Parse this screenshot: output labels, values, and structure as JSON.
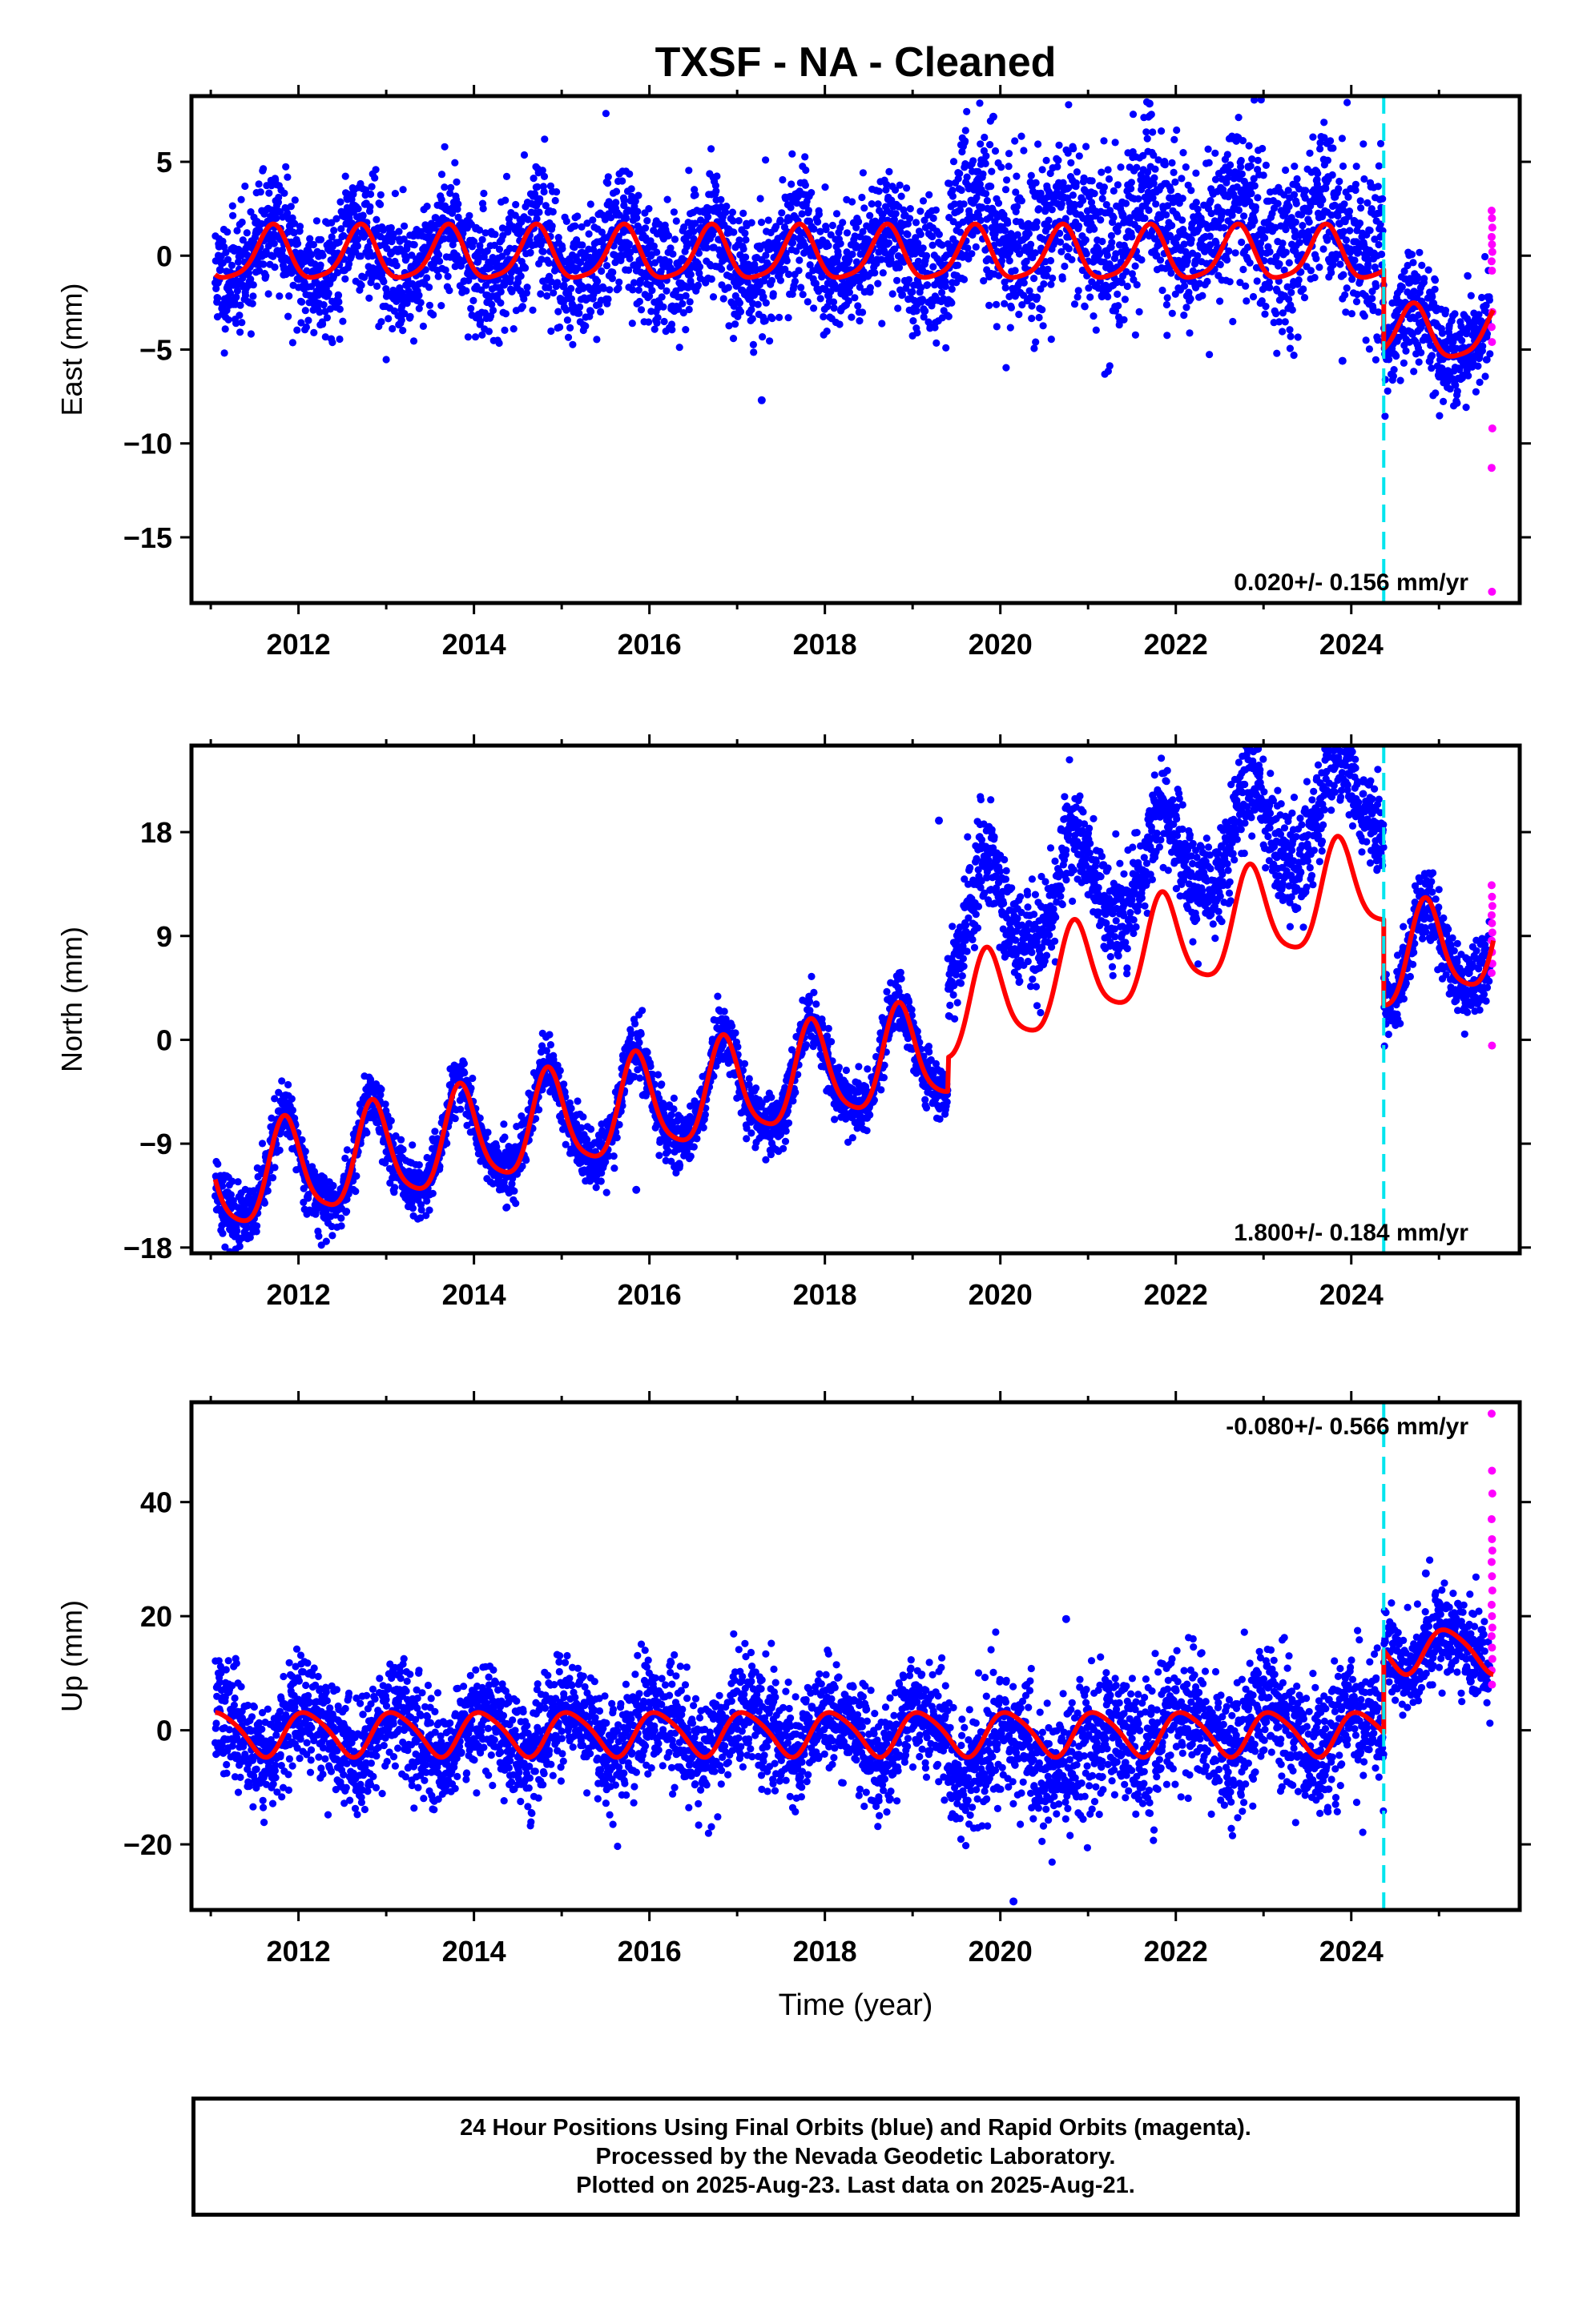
{
  "title": "TXSF  - NA - Cleaned",
  "xlabel": "Time (year)",
  "colors": {
    "final_orbits": "#0000ff",
    "rapid_orbits": "#ff00ff",
    "model_fit": "#ff0000",
    "offset_line": "#00e5ee",
    "frame": "#000000"
  },
  "notes": [
    "24 Hour Positions Using Final Orbits (blue) and Rapid Orbits (magenta).",
    "Processed by the Nevada Geodetic Laboratory.",
    "Plotted on 2025-Aug-23. Last data on 2025-Aug-21."
  ],
  "chart_data": [
    {
      "type": "scatter",
      "component": "east",
      "ylabel": "East (mm)",
      "xlim": [
        2010.78,
        2025.92
      ],
      "ylim": [
        -18.5,
        8.5
      ],
      "xticks": [
        2012,
        2014,
        2016,
        2018,
        2020,
        2022,
        2024
      ],
      "yticks": [
        5,
        0,
        -5,
        -10,
        -15
      ],
      "yticklabels": [
        "5",
        "0",
        "−5",
        "−10",
        "−15"
      ],
      "rate_text": "0.020+/- 0.156 mm/yr",
      "rate_position": "bottom-right",
      "offset_epoch": 2024.37,
      "rapid_orbit_epoch": 2025.6,
      "rapid_orbit_values": [
        2.4,
        2.0,
        1.5,
        1.0,
        0.6,
        0.2,
        -0.3,
        -0.8,
        -3.0,
        -3.8,
        -4.6,
        -9.2,
        -11.3,
        -17.9
      ],
      "final_orbit_outliers": [
        {
          "x": 2017.28,
          "y": -7.7
        },
        {
          "x": 2021.7,
          "y": 8.1
        },
        {
          "x": 2019.92,
          "y": 7.4
        },
        {
          "x": 2023.9,
          "y": -5.6
        }
      ],
      "model": {
        "pre_offset_segments": [
          [
            2011.0,
            2019.4,
            0.0,
            0.0
          ],
          [
            2019.4,
            2024.37,
            0.0,
            0.0
          ]
        ],
        "post_offset_level": -4.2,
        "annual_amplitude": 1.4,
        "annual_phase": 0.45,
        "semiannual_amplitude": 0.3,
        "semiannual_phase": 0.1
      },
      "scatter_spread": 1.6,
      "scatter_spread_changes": [
        [
          2019.4,
          2.2
        ],
        [
          2024.37,
          1.4
        ]
      ],
      "segment_shift": [
        [
          2019.4,
          2024.37,
          1.4
        ]
      ],
      "seed": 11
    },
    {
      "type": "scatter",
      "component": "north",
      "ylabel": "North (mm)",
      "xlim": [
        2010.78,
        2025.92
      ],
      "ylim": [
        -18.5,
        25.5
      ],
      "xticks": [
        2012,
        2014,
        2016,
        2018,
        2020,
        2022,
        2024
      ],
      "yticks": [
        18,
        9,
        0,
        -9,
        -18
      ],
      "yticklabels": [
        "18",
        "9",
        "0",
        "−9",
        "−18"
      ],
      "rate_text": "1.800+/- 0.184 mm/yr",
      "rate_position": "bottom-right",
      "offset_epoch": 2024.37,
      "rapid_orbit_epoch": 2025.6,
      "rapid_orbit_values": [
        13.4,
        12.4,
        11.6,
        10.8,
        10.1,
        9.3,
        8.6,
        7.6,
        6.6,
        5.8,
        -0.5
      ],
      "final_orbit_outliers": [
        {
          "x": 2024.0,
          "y": 23.6
        },
        {
          "x": 2019.3,
          "y": 19.0
        },
        {
          "x": 2015.85,
          "y": -13.0
        }
      ],
      "model": {
        "pre_offset_segments": [
          [
            2011.0,
            2019.4,
            -12.7,
            1.4
          ],
          [
            2019.4,
            2024.37,
            2.0,
            2.4
          ]
        ],
        "post_offset_level": 6.5,
        "post_offset_rate": 1.8,
        "annual_amplitude": 4.2,
        "annual_phase": 0.6,
        "semiannual_amplitude": 0.8,
        "semiannual_phase": 0.2
      },
      "scatter_spread": 1.3,
      "scatter_spread_changes": [
        [
          2019.4,
          2.1
        ],
        [
          2024.37,
          1.5
        ]
      ],
      "segment_shift": [
        [
          2019.4,
          2024.37,
          7.5
        ]
      ],
      "seed": 23
    },
    {
      "type": "scatter",
      "component": "up",
      "ylabel": "Up (mm)",
      "xlim": [
        2010.78,
        2025.92
      ],
      "ylim": [
        -31.5,
        57.5
      ],
      "xticks": [
        2012,
        2014,
        2016,
        2018,
        2020,
        2022,
        2024
      ],
      "yticks": [
        40,
        20,
        0,
        -20
      ],
      "yticklabels": [
        "40",
        "20",
        "0",
        "−20"
      ],
      "rate_text": "-0.080+/- 0.566 mm/yr",
      "rate_position": "top-right",
      "offset_epoch": 2024.37,
      "rapid_orbit_epoch": 2025.6,
      "rapid_orbit_values": [
        55.5,
        45.5,
        41.5,
        37.0,
        33.5,
        31.5,
        29.5,
        27.0,
        24.5,
        22.0,
        20.0,
        18.0,
        16.5,
        14.5,
        12.5,
        10.5,
        8.0
      ],
      "final_orbit_outliers": [
        {
          "x": 2020.15,
          "y": -30.0
        },
        {
          "x": 2020.75,
          "y": 19.5
        },
        {
          "x": 2024.85,
          "y": 27.5
        }
      ],
      "model": {
        "pre_offset_segments": [
          [
            2011.0,
            2024.37,
            -0.5,
            0.0
          ]
        ],
        "post_offset_level": 14.0,
        "annual_amplitude": 3.8,
        "annual_phase": 0.85,
        "semiannual_amplitude": 0.6,
        "semiannual_phase": 0.3
      },
      "scatter_spread": 4.8,
      "scatter_spread_changes": [
        [
          2019.4,
          5.6
        ],
        [
          2024.37,
          3.6
        ]
      ],
      "segment_shift": [
        [
          2019.4,
          2021.2,
          -4.0
        ]
      ],
      "seed": 37
    }
  ]
}
